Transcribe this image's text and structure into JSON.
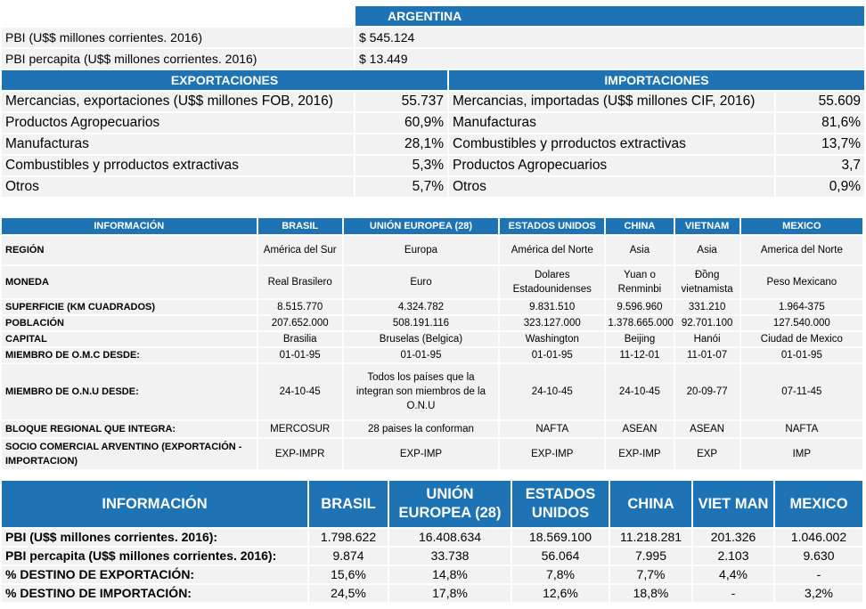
{
  "argentina": {
    "title": "ARGENTINA",
    "pbi_label": "PBI (U$$ millones corrientes. 2016)",
    "pbi_value": "$ 545.124",
    "percapita_label": "PBI  percapita (U$$ millones corrientes. 2016)",
    "percapita_value": "$ 13.449",
    "exportaciones": {
      "title": "EXPORTACIONES",
      "rows": [
        {
          "label": "Mercancias, exportaciones (U$$ millones FOB, 2016)",
          "value": "55.737"
        },
        {
          "label": "Productos Agropecuarios",
          "value": "60,9%"
        },
        {
          "label": "Manufacturas",
          "value": "28,1%"
        },
        {
          "label": "Combustibles y prroductos extractivas",
          "value": "5,3%"
        },
        {
          "label": "Otros",
          "value": "5,7%"
        }
      ]
    },
    "importaciones": {
      "title": "IMPORTACIONES",
      "rows": [
        {
          "label": "Mercancias, importadas (U$$ millones CIF, 2016)",
          "value": "55.609"
        },
        {
          "label": "Manufacturas",
          "value": "81,6%"
        },
        {
          "label": "Combustibles y prroductos extractivas",
          "value": "13,7%"
        },
        {
          "label": "Productos Agropecuarios",
          "value": "3,7"
        },
        {
          "label": "Otros",
          "value": "0,9%"
        }
      ]
    }
  },
  "info_table": {
    "headers": [
      "INFORMACIÓN",
      "BRASIL",
      "UNIÓN EUROPEA (28)",
      "ESTADOS UNIDOS",
      "CHINA",
      "VIETNAM",
      "MEXICO"
    ],
    "rows": {
      "region": {
        "label": "REGIÓN",
        "values": [
          "América del Sur",
          "Europa",
          "América del Norte",
          "Asia",
          "Asia",
          "America del Norte"
        ]
      },
      "moneda": {
        "label": "MONEDA",
        "values": [
          "Real Brasilero",
          "Euro",
          "Dolares Estadounidenses",
          "Yuan o Renminbi",
          "Đồng vietnamista",
          "Peso Mexicano"
        ]
      },
      "superficie": {
        "label": "SUPERFICIE (KM CUADRADOS)",
        "values": [
          "8.515.770",
          "4.324.782",
          "9.831.510",
          "9.596.960",
          "331.210",
          "1.964-375"
        ]
      },
      "poblacion": {
        "label": "POBLACIÓN",
        "values": [
          "207.652.000",
          "508.191.116",
          "323.127.000",
          "1.378.665.000",
          "92.701.100",
          "127.540.000"
        ]
      },
      "capital": {
        "label": "CAPITAL",
        "values": [
          "Brasilia",
          "Bruselas (Belgica)",
          "Washington",
          "Beijing",
          "Hanói",
          "Ciudad de Mexico"
        ]
      },
      "omc": {
        "label": "MIEMBRO DE O.M.C DESDE:",
        "values": [
          "01-01-95",
          "01-01-95",
          "01-01-95",
          "11-12-01",
          "11-01-07",
          "01-01-95"
        ]
      },
      "onu": {
        "label": "MIEMBRO DE O.N.U DESDE:",
        "values": [
          "24-10-45",
          "Todos los países que la integran son miembros de la O.N.U",
          "24-10-45",
          "24-10-45",
          "20-09-77",
          "07-11-45"
        ]
      },
      "bloque": {
        "label": "BLOQUE REGIONAL QUE INTEGRA:",
        "values": [
          "MERCOSUR",
          "28 paises la conforman",
          "NAFTA",
          "ASEAN",
          "ASEAN",
          "NAFTA"
        ]
      },
      "socio": {
        "label": "SOCIO COMERCIAL ARVENTINO (EXPORTACIÓN - IMPORTACION)",
        "values": [
          "EXP-IMPR",
          "EXP-IMP",
          "EXP-IMP",
          "EXP-IMP",
          "EXP",
          "IMP"
        ]
      }
    }
  },
  "econ_table": {
    "headers": [
      "INFORMACIÓN",
      "BRASIL",
      "UNIÓN EUROPEA (28)",
      "ESTADOS UNIDOS",
      "CHINA",
      "VIET MAN",
      "MEXICO"
    ],
    "rows": {
      "pbi": {
        "label": "PBI (U$$ millones corrientes. 2016):",
        "values": [
          "1.798.622",
          "16.408.634",
          "18.569.100",
          "11.218.281",
          "201.326",
          "1.046.002"
        ]
      },
      "percapita": {
        "label": "PBI percapita (U$$ millones corrientes. 2016):",
        "values": [
          "9.874",
          "33.738",
          "56.064",
          "7.995",
          "2.103",
          "9.630"
        ]
      },
      "destino_exp": {
        "label": "% DESTINO DE EXPORTACIÓN:",
        "values": [
          "15,6%",
          "14,8%",
          "7,8%",
          "7,7%",
          "4,4%",
          "-"
        ]
      },
      "destino_imp": {
        "label": "% DESTINO DE IMPORTACIÓN:",
        "values": [
          "24,5%",
          "17,8%",
          "12,6%",
          "18,8%",
          "-",
          "3,2%"
        ]
      }
    }
  }
}
